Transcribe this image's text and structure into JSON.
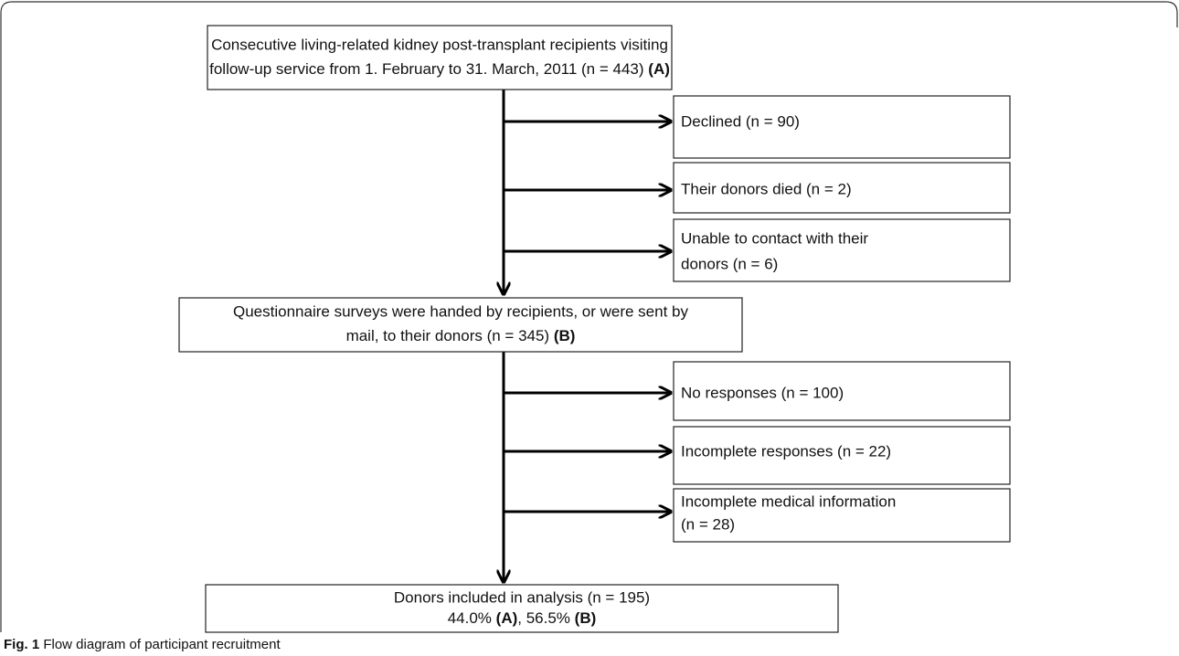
{
  "nodes": [
    {
      "lines": [
        "Consecutive living-related kidney post-transplant recipients visiting",
        "follow-up service from 1. February to 31. March, 2011 (n = 443)"
      ],
      "tag": "(A)"
    },
    {
      "lines": [
        "Declined (n = 90)"
      ]
    },
    {
      "lines": [
        "Their donors died (n = 2)"
      ]
    },
    {
      "lines": [
        "Unable to contact with their",
        "donors (n = 6)"
      ]
    },
    {
      "lines": [
        "Questionnaire surveys were handed by recipients, or were sent by",
        "mail, to their donors (n = 345)"
      ],
      "tag": "(B)"
    },
    {
      "lines": [
        "No responses (n = 100)"
      ]
    },
    {
      "lines": [
        "Incomplete responses  (n = 22)"
      ]
    },
    {
      "lines": [
        "Incomplete medical information",
        "(n = 28)"
      ]
    },
    {
      "lines": [
        "Donors included in analysis (n = 195)",
        "44.0%"
      ],
      "tags": [
        "(A)",
        ", 56.5%",
        "(B)"
      ]
    }
  ],
  "caption": {
    "label": "Fig. 1",
    "text": "Flow diagram of participant recruitment"
  }
}
